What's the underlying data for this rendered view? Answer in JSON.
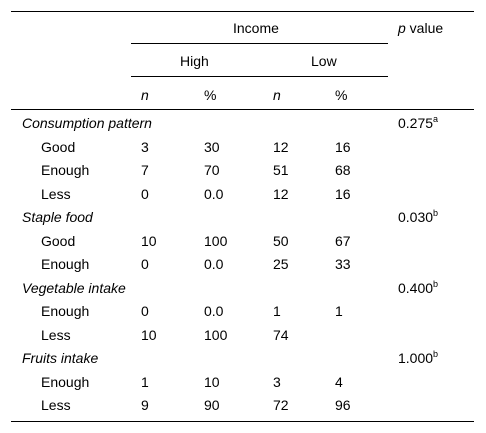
{
  "header": {
    "income": "Income",
    "p_label_italic": "p",
    "p_label_rest": " value",
    "high": "High",
    "low": "Low",
    "n": "n",
    "pct": "%"
  },
  "sections": [
    {
      "title": "Consumption pattern",
      "p": "0.275",
      "p_sup": "a",
      "rows": [
        {
          "label": "Good",
          "hn": "3",
          "hp": "30",
          "ln": "12",
          "lp": "16"
        },
        {
          "label": "Enough",
          "hn": "7",
          "hp": "70",
          "ln": "51",
          "lp": "68"
        },
        {
          "label": "Less",
          "hn": "0",
          "hp": "0.0",
          "ln": "12",
          "lp": "16"
        }
      ]
    },
    {
      "title": "Staple food",
      "p": "0.030",
      "p_sup": "b",
      "rows": [
        {
          "label": "Good",
          "hn": "10",
          "hp": "100",
          "ln": "50",
          "lp": "67"
        },
        {
          "label": "Enough",
          "hn": "0",
          "hp": "0.0",
          "ln": "25",
          "lp": "33"
        }
      ]
    },
    {
      "title": "Vegetable intake",
      "p": "0.400",
      "p_sup": "b",
      "rows": [
        {
          "label": "Enough",
          "hn": "0",
          "hp": "0.0",
          "ln": "1",
          "lp": "1"
        },
        {
          "label": "Less",
          "hn": "10",
          "hp": "100",
          "ln": "74",
          "lp": ""
        }
      ]
    },
    {
      "title": "Fruits intake",
      "p": "1.000",
      "p_sup": "b",
      "rows": [
        {
          "label": "Enough",
          "hn": "1",
          "hp": "10",
          "ln": "3",
          "lp": "4"
        },
        {
          "label": "Less",
          "hn": "9",
          "hp": "90",
          "ln": "72",
          "lp": "96"
        }
      ]
    }
  ]
}
